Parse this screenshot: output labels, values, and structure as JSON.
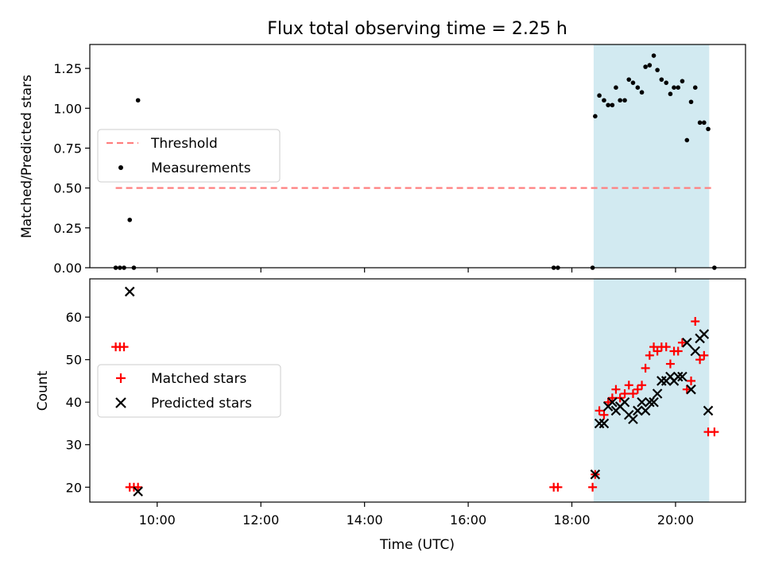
{
  "chart_data": [
    {
      "type": "scatter",
      "title": "Flux total observing time = 2.25 h",
      "ylabel": "Matched/Predicted stars",
      "xlabel": "",
      "xlim": [
        8.7,
        21.35
      ],
      "ylim": [
        0,
        1.4
      ],
      "yticks": [
        0.0,
        0.25,
        0.5,
        0.75,
        1.0,
        1.25
      ],
      "ytick_labels": [
        "0.00",
        "0.25",
        "0.50",
        "0.75",
        "1.00",
        "1.25"
      ],
      "xticks": [
        10,
        12,
        14,
        16,
        18,
        20
      ],
      "xtick_labels_shown": false,
      "shaded_region": [
        18.42,
        20.65
      ],
      "shade_color": "#add8e6",
      "threshold": {
        "name": "Threshold",
        "y": 0.5,
        "x_range": [
          9.2,
          20.75
        ],
        "color": "#ff7f7f"
      },
      "series": [
        {
          "name": "Measurements",
          "color": "#000000",
          "marker": "dot",
          "points": [
            [
              9.2,
              0.0
            ],
            [
              9.28,
              0.0
            ],
            [
              9.36,
              0.0
            ],
            [
              9.47,
              0.3
            ],
            [
              9.55,
              0.0
            ],
            [
              9.63,
              1.05
            ],
            [
              17.65,
              0.0
            ],
            [
              17.73,
              0.0
            ],
            [
              18.4,
              0.0
            ],
            [
              18.45,
              0.95
            ],
            [
              18.53,
              1.08
            ],
            [
              18.62,
              1.05
            ],
            [
              18.7,
              1.02
            ],
            [
              18.78,
              1.02
            ],
            [
              18.85,
              1.13
            ],
            [
              18.93,
              1.05
            ],
            [
              19.02,
              1.05
            ],
            [
              19.1,
              1.18
            ],
            [
              19.18,
              1.16
            ],
            [
              19.27,
              1.13
            ],
            [
              19.35,
              1.1
            ],
            [
              19.42,
              1.26
            ],
            [
              19.5,
              1.27
            ],
            [
              19.58,
              1.33
            ],
            [
              19.65,
              1.24
            ],
            [
              19.73,
              1.18
            ],
            [
              19.82,
              1.16
            ],
            [
              19.9,
              1.09
            ],
            [
              19.97,
              1.13
            ],
            [
              20.05,
              1.13
            ],
            [
              20.13,
              1.17
            ],
            [
              20.22,
              0.8
            ],
            [
              20.3,
              1.04
            ],
            [
              20.38,
              1.13
            ],
            [
              20.47,
              0.91
            ],
            [
              20.55,
              0.91
            ],
            [
              20.63,
              0.87
            ],
            [
              20.75,
              0.0
            ]
          ]
        }
      ],
      "legend": {
        "placement": "center-left",
        "entries": [
          "Threshold",
          "Measurements"
        ]
      }
    },
    {
      "type": "scatter",
      "title": "",
      "ylabel": "Count",
      "xlabel": "Time (UTC)",
      "xlim": [
        8.7,
        21.35
      ],
      "ylim": [
        16.5,
        69
      ],
      "yticks": [
        20,
        30,
        40,
        50,
        60
      ],
      "ytick_labels": [
        "20",
        "30",
        "40",
        "50",
        "60"
      ],
      "xticks": [
        10,
        12,
        14,
        16,
        18,
        20
      ],
      "xtick_labels": [
        "10:00",
        "12:00",
        "14:00",
        "16:00",
        "18:00",
        "20:00"
      ],
      "shaded_region": [
        18.42,
        20.65
      ],
      "shade_color": "#add8e6",
      "series": [
        {
          "name": "Matched stars",
          "color": "#ff0000",
          "marker": "plus",
          "points": [
            [
              9.2,
              53
            ],
            [
              9.28,
              53
            ],
            [
              9.36,
              53
            ],
            [
              9.47,
              20
            ],
            [
              9.55,
              20
            ],
            [
              9.63,
              20
            ],
            [
              17.65,
              20
            ],
            [
              17.73,
              20
            ],
            [
              18.4,
              20
            ],
            [
              18.45,
              23
            ],
            [
              18.53,
              38
            ],
            [
              18.62,
              37
            ],
            [
              18.7,
              40
            ],
            [
              18.78,
              41
            ],
            [
              18.85,
              43
            ],
            [
              18.93,
              41
            ],
            [
              19.02,
              42
            ],
            [
              19.1,
              44
            ],
            [
              19.18,
              42
            ],
            [
              19.27,
              43
            ],
            [
              19.35,
              44
            ],
            [
              19.42,
              48
            ],
            [
              19.5,
              51
            ],
            [
              19.58,
              53
            ],
            [
              19.65,
              52
            ],
            [
              19.73,
              53
            ],
            [
              19.82,
              53
            ],
            [
              19.9,
              49
            ],
            [
              19.97,
              52
            ],
            [
              20.05,
              52
            ],
            [
              20.13,
              54
            ],
            [
              20.22,
              43
            ],
            [
              20.3,
              45
            ],
            [
              20.38,
              59
            ],
            [
              20.47,
              50
            ],
            [
              20.55,
              51
            ],
            [
              20.63,
              33
            ],
            [
              20.75,
              33
            ]
          ]
        },
        {
          "name": "Predicted stars",
          "color": "#000000",
          "marker": "x",
          "points": [
            [
              9.47,
              66
            ],
            [
              9.63,
              19
            ],
            [
              18.45,
              23
            ],
            [
              18.53,
              35
            ],
            [
              18.62,
              35
            ],
            [
              18.7,
              39
            ],
            [
              18.78,
              40
            ],
            [
              18.85,
              38
            ],
            [
              18.93,
              39
            ],
            [
              19.02,
              40
            ],
            [
              19.1,
              37
            ],
            [
              19.18,
              36
            ],
            [
              19.27,
              38
            ],
            [
              19.35,
              40
            ],
            [
              19.42,
              38
            ],
            [
              19.5,
              40
            ],
            [
              19.58,
              40
            ],
            [
              19.65,
              42
            ],
            [
              19.73,
              45
            ],
            [
              19.82,
              45
            ],
            [
              19.9,
              46
            ],
            [
              19.97,
              45
            ],
            [
              20.05,
              46
            ],
            [
              20.13,
              46
            ],
            [
              20.22,
              54
            ],
            [
              20.3,
              43
            ],
            [
              20.38,
              52
            ],
            [
              20.47,
              55
            ],
            [
              20.55,
              56
            ],
            [
              20.63,
              38
            ]
          ]
        }
      ],
      "legend": {
        "placement": "center-left",
        "entries": [
          "Matched stars",
          "Predicted stars"
        ]
      }
    }
  ]
}
